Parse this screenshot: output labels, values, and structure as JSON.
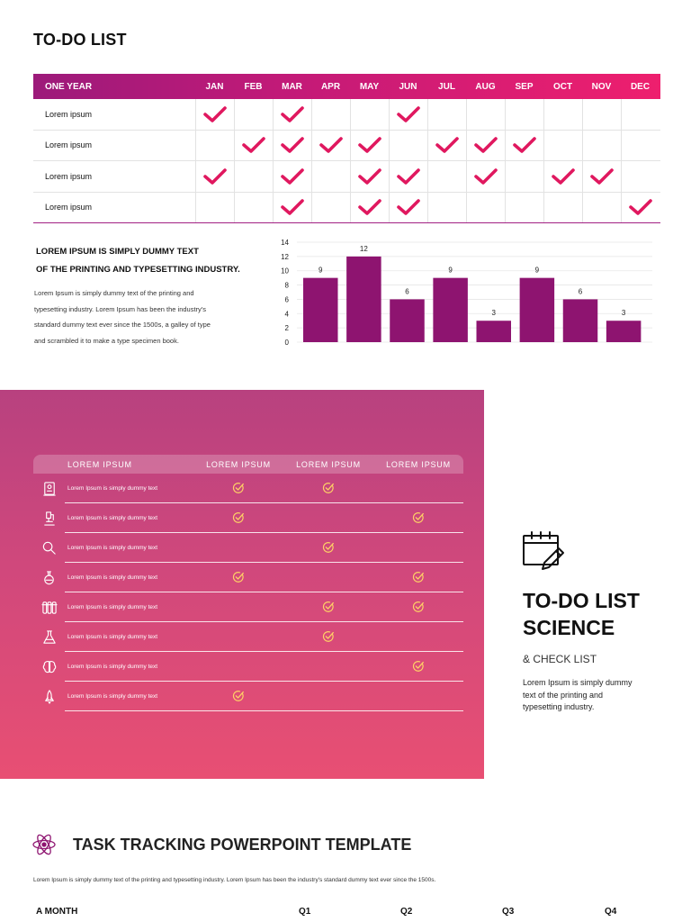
{
  "page_title": "TO-DO LIST",
  "year_table": {
    "header_label": "ONE YEAR",
    "months": [
      "JAN",
      "FEB",
      "MAR",
      "APR",
      "MAY",
      "JUN",
      "JUL",
      "AUG",
      "SEP",
      "OCT",
      "NOV",
      "DEC"
    ],
    "rows": [
      {
        "label": "Lorem ipsum",
        "checks": [
          1,
          0,
          1,
          0,
          0,
          1,
          0,
          0,
          0,
          0,
          0,
          0
        ]
      },
      {
        "label": "Lorem ipsum",
        "checks": [
          0,
          1,
          1,
          1,
          1,
          0,
          1,
          1,
          1,
          0,
          0,
          0
        ]
      },
      {
        "label": "Lorem ipsum",
        "checks": [
          1,
          0,
          1,
          0,
          1,
          1,
          0,
          1,
          0,
          1,
          1,
          0
        ]
      },
      {
        "label": "Lorem ipsum",
        "checks": [
          0,
          0,
          1,
          0,
          1,
          1,
          0,
          0,
          0,
          0,
          0,
          1
        ]
      }
    ],
    "check_color": "#e0185f"
  },
  "middle": {
    "heading_line1": "LOREM IPSUM IS SIMPLY DUMMY TEXT",
    "heading_line2": "OF THE PRINTING AND TYPESETTING INDUSTRY.",
    "body_lines": [
      "Lorem Ipsum is simply dummy text of the printing and",
      "typesetting industry. Lorem Ipsum has been the industry's",
      "standard dummy text ever since the 1500s, a galley of type",
      "and scrambled it to make a type specimen book."
    ]
  },
  "chart_data": {
    "type": "bar",
    "values": [
      9,
      12,
      6,
      9,
      3,
      9,
      6,
      3
    ],
    "data_labels": [
      "9",
      "12",
      "6",
      "9",
      "3",
      "9",
      "6",
      "3"
    ],
    "ylim": [
      0,
      14
    ],
    "yticks": [
      0,
      2,
      4,
      6,
      8,
      10,
      12,
      14
    ],
    "grid": true,
    "bar_color": "#8e1470"
  },
  "science": {
    "headers": [
      "LOREM IPSUM",
      "LOREM IPSUM",
      "LOREM IPSUM",
      "LOREM IPSUM"
    ],
    "rows": [
      {
        "icon": "id-card-icon",
        "text": "Lorem Ipsum is simply dummy text",
        "checks": [
          1,
          1,
          0
        ]
      },
      {
        "icon": "microscope-icon",
        "text": "Lorem Ipsum is simply dummy text",
        "checks": [
          1,
          0,
          1
        ]
      },
      {
        "icon": "magnifier-icon",
        "text": "Lorem Ipsum is simply dummy text",
        "checks": [
          0,
          1,
          0
        ]
      },
      {
        "icon": "round-flask-icon",
        "text": "Lorem Ipsum is simply dummy text",
        "checks": [
          1,
          0,
          1
        ]
      },
      {
        "icon": "test-tubes-icon",
        "text": "Lorem Ipsum is simply dummy text",
        "checks": [
          0,
          1,
          1
        ]
      },
      {
        "icon": "conical-flask-icon",
        "text": "Lorem Ipsum is simply dummy text",
        "checks": [
          0,
          1,
          0
        ]
      },
      {
        "icon": "brain-icon",
        "text": "Lorem Ipsum is simply dummy text",
        "checks": [
          0,
          0,
          1
        ]
      },
      {
        "icon": "rocket-icon",
        "text": "Lorem Ipsum is simply dummy text",
        "checks": [
          1,
          0,
          0
        ]
      }
    ],
    "check_color": "#ffd166"
  },
  "right": {
    "icon": "calendar-edit-icon",
    "title_line1": "TO-DO LIST",
    "title_line2": "SCIENCE",
    "subtitle": "& CHECK LIST",
    "body_lines": [
      "Lorem Ipsum is simply dummy",
      "text of the printing and",
      "typesetting industry."
    ]
  },
  "bottom": {
    "icon": "atom-icon",
    "title": "TASK TRACKING POWERPOINT TEMPLATE",
    "body": "Lorem Ipsum is simply dummy text of the printing and typesetting industry. Lorem Ipsum has been the industry's standard dummy text ever since the 1500s.",
    "columns": [
      "A MONTH",
      "Q1",
      "Q2",
      "Q3",
      "Q4"
    ]
  }
}
